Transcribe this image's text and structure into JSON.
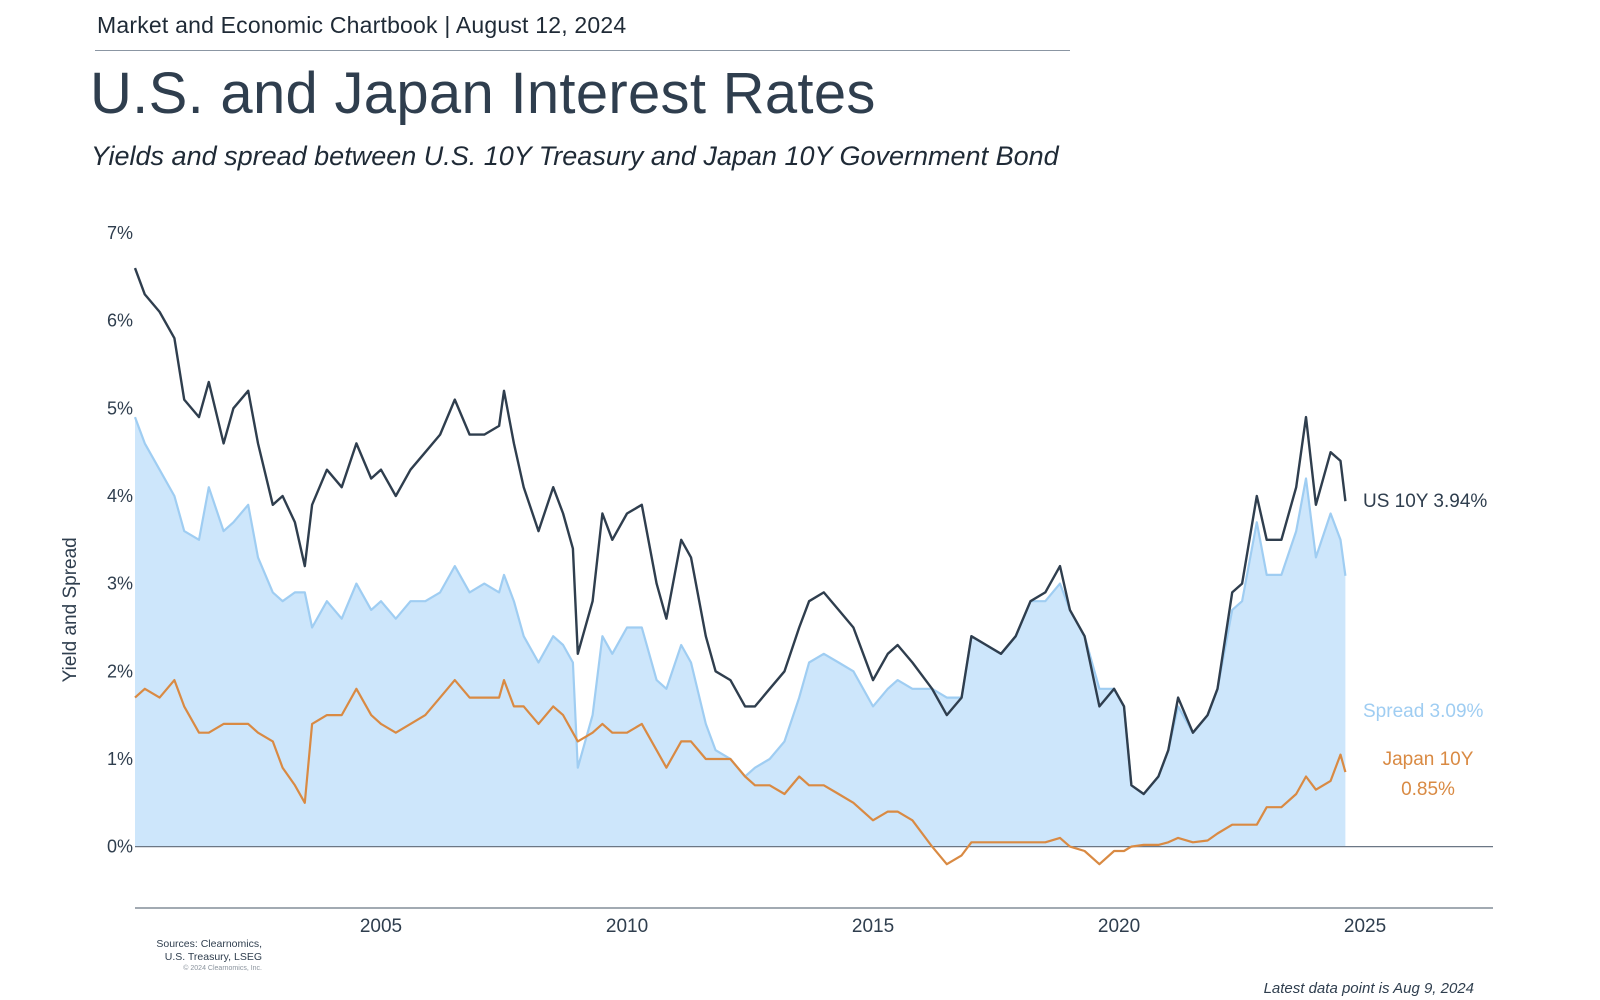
{
  "header": {
    "label": "Market and Economic Chartbook | August 12, 2024",
    "title": "U.S. and Japan Interest Rates",
    "subtitle": "Yields and spread between U.S. 10Y Treasury and Japan 10Y Government Bond"
  },
  "footer": {
    "sources_line1": "Sources: Clearnomics,",
    "sources_line2": "U.S. Treasury, LSEG",
    "copyright": "© 2024 Clearnomics, Inc.",
    "latest": "Latest data point is Aug 9, 2024"
  },
  "colors": {
    "us": "#2f3e4e",
    "spread_line": "#9fcdf2",
    "spread_fill": "#cde6fb",
    "japan": "#d98a43",
    "axis": "#6b7785"
  },
  "chart_data": {
    "type": "line",
    "ylabel": "Yield and Spread",
    "xlabel": "",
    "x_ticks": [
      2005,
      2010,
      2015,
      2020,
      2025
    ],
    "x_tick_labels": [
      "2005",
      "2010",
      "2015",
      "2020",
      "2025"
    ],
    "y_ticks": [
      0,
      1,
      2,
      3,
      4,
      5,
      6,
      7
    ],
    "y_tick_labels": [
      "0%",
      "1%",
      "2%",
      "3%",
      "4%",
      "5%",
      "6%",
      "7%"
    ],
    "xlim": [
      2000.0,
      2027.6
    ],
    "ylim": [
      -0.7,
      7.0
    ],
    "series": [
      {
        "name": "US 10Y",
        "end_label": "US 10Y 3.94%",
        "values": [
          [
            2000.0,
            6.6
          ],
          [
            2000.2,
            6.3
          ],
          [
            2000.5,
            6.1
          ],
          [
            2000.8,
            5.8
          ],
          [
            2001.0,
            5.1
          ],
          [
            2001.3,
            4.9
          ],
          [
            2001.5,
            5.3
          ],
          [
            2001.8,
            4.6
          ],
          [
            2002.0,
            5.0
          ],
          [
            2002.3,
            5.2
          ],
          [
            2002.5,
            4.6
          ],
          [
            2002.8,
            3.9
          ],
          [
            2003.0,
            4.0
          ],
          [
            2003.25,
            3.7
          ],
          [
            2003.45,
            3.2
          ],
          [
            2003.6,
            3.9
          ],
          [
            2003.9,
            4.3
          ],
          [
            2004.2,
            4.1
          ],
          [
            2004.5,
            4.6
          ],
          [
            2004.8,
            4.2
          ],
          [
            2005.0,
            4.3
          ],
          [
            2005.3,
            4.0
          ],
          [
            2005.6,
            4.3
          ],
          [
            2005.9,
            4.5
          ],
          [
            2006.2,
            4.7
          ],
          [
            2006.5,
            5.1
          ],
          [
            2006.8,
            4.7
          ],
          [
            2007.1,
            4.7
          ],
          [
            2007.4,
            4.8
          ],
          [
            2007.5,
            5.2
          ],
          [
            2007.7,
            4.6
          ],
          [
            2007.9,
            4.1
          ],
          [
            2008.2,
            3.6
          ],
          [
            2008.5,
            4.1
          ],
          [
            2008.7,
            3.8
          ],
          [
            2008.9,
            3.4
          ],
          [
            2009.0,
            2.2
          ],
          [
            2009.3,
            2.8
          ],
          [
            2009.5,
            3.8
          ],
          [
            2009.7,
            3.5
          ],
          [
            2010.0,
            3.8
          ],
          [
            2010.3,
            3.9
          ],
          [
            2010.6,
            3.0
          ],
          [
            2010.8,
            2.6
          ],
          [
            2011.1,
            3.5
          ],
          [
            2011.3,
            3.3
          ],
          [
            2011.6,
            2.4
          ],
          [
            2011.8,
            2.0
          ],
          [
            2012.1,
            1.9
          ],
          [
            2012.4,
            1.6
          ],
          [
            2012.6,
            1.6
          ],
          [
            2012.9,
            1.8
          ],
          [
            2013.2,
            2.0
          ],
          [
            2013.5,
            2.5
          ],
          [
            2013.7,
            2.8
          ],
          [
            2014.0,
            2.9
          ],
          [
            2014.3,
            2.7
          ],
          [
            2014.6,
            2.5
          ],
          [
            2015.0,
            1.9
          ],
          [
            2015.3,
            2.2
          ],
          [
            2015.5,
            2.3
          ],
          [
            2015.8,
            2.1
          ],
          [
            2016.2,
            1.8
          ],
          [
            2016.5,
            1.5
          ],
          [
            2016.8,
            1.7
          ],
          [
            2017.0,
            2.4
          ],
          [
            2017.3,
            2.3
          ],
          [
            2017.6,
            2.2
          ],
          [
            2017.9,
            2.4
          ],
          [
            2018.2,
            2.8
          ],
          [
            2018.5,
            2.9
          ],
          [
            2018.8,
            3.2
          ],
          [
            2019.0,
            2.7
          ],
          [
            2019.3,
            2.4
          ],
          [
            2019.6,
            1.6
          ],
          [
            2019.9,
            1.8
          ],
          [
            2020.1,
            1.6
          ],
          [
            2020.25,
            0.7
          ],
          [
            2020.5,
            0.6
          ],
          [
            2020.8,
            0.8
          ],
          [
            2021.0,
            1.1
          ],
          [
            2021.2,
            1.7
          ],
          [
            2021.5,
            1.3
          ],
          [
            2021.8,
            1.5
          ],
          [
            2022.0,
            1.8
          ],
          [
            2022.3,
            2.9
          ],
          [
            2022.5,
            3.0
          ],
          [
            2022.8,
            4.0
          ],
          [
            2023.0,
            3.5
          ],
          [
            2023.3,
            3.5
          ],
          [
            2023.6,
            4.1
          ],
          [
            2023.8,
            4.9
          ],
          [
            2024.0,
            3.9
          ],
          [
            2024.3,
            4.5
          ],
          [
            2024.5,
            4.4
          ],
          [
            2024.6,
            3.94
          ]
        ]
      },
      {
        "name": "Spread",
        "end_label": "Spread 3.09%",
        "values": [
          [
            2000.0,
            4.9
          ],
          [
            2000.2,
            4.6
          ],
          [
            2000.5,
            4.3
          ],
          [
            2000.8,
            4.0
          ],
          [
            2001.0,
            3.6
          ],
          [
            2001.3,
            3.5
          ],
          [
            2001.5,
            4.1
          ],
          [
            2001.8,
            3.6
          ],
          [
            2002.0,
            3.7
          ],
          [
            2002.3,
            3.9
          ],
          [
            2002.5,
            3.3
          ],
          [
            2002.8,
            2.9
          ],
          [
            2003.0,
            2.8
          ],
          [
            2003.25,
            2.9
          ],
          [
            2003.45,
            2.9
          ],
          [
            2003.6,
            2.5
          ],
          [
            2003.9,
            2.8
          ],
          [
            2004.2,
            2.6
          ],
          [
            2004.5,
            3.0
          ],
          [
            2004.8,
            2.7
          ],
          [
            2005.0,
            2.8
          ],
          [
            2005.3,
            2.6
          ],
          [
            2005.6,
            2.8
          ],
          [
            2005.9,
            2.8
          ],
          [
            2006.2,
            2.9
          ],
          [
            2006.5,
            3.2
          ],
          [
            2006.8,
            2.9
          ],
          [
            2007.1,
            3.0
          ],
          [
            2007.4,
            2.9
          ],
          [
            2007.5,
            3.1
          ],
          [
            2007.7,
            2.8
          ],
          [
            2007.9,
            2.4
          ],
          [
            2008.2,
            2.1
          ],
          [
            2008.5,
            2.4
          ],
          [
            2008.7,
            2.3
          ],
          [
            2008.9,
            2.1
          ],
          [
            2009.0,
            0.9
          ],
          [
            2009.3,
            1.5
          ],
          [
            2009.5,
            2.4
          ],
          [
            2009.7,
            2.2
          ],
          [
            2010.0,
            2.5
          ],
          [
            2010.3,
            2.5
          ],
          [
            2010.6,
            1.9
          ],
          [
            2010.8,
            1.8
          ],
          [
            2011.1,
            2.3
          ],
          [
            2011.3,
            2.1
          ],
          [
            2011.6,
            1.4
          ],
          [
            2011.8,
            1.1
          ],
          [
            2012.1,
            1.0
          ],
          [
            2012.4,
            0.8
          ],
          [
            2012.6,
            0.9
          ],
          [
            2012.9,
            1.0
          ],
          [
            2013.2,
            1.2
          ],
          [
            2013.5,
            1.7
          ],
          [
            2013.7,
            2.1
          ],
          [
            2014.0,
            2.2
          ],
          [
            2014.3,
            2.1
          ],
          [
            2014.6,
            2.0
          ],
          [
            2015.0,
            1.6
          ],
          [
            2015.3,
            1.8
          ],
          [
            2015.5,
            1.9
          ],
          [
            2015.8,
            1.8
          ],
          [
            2016.2,
            1.8
          ],
          [
            2016.5,
            1.7
          ],
          [
            2016.8,
            1.7
          ],
          [
            2017.0,
            2.4
          ],
          [
            2017.3,
            2.3
          ],
          [
            2017.6,
            2.2
          ],
          [
            2017.9,
            2.4
          ],
          [
            2018.2,
            2.8
          ],
          [
            2018.5,
            2.8
          ],
          [
            2018.8,
            3.0
          ],
          [
            2019.0,
            2.7
          ],
          [
            2019.3,
            2.4
          ],
          [
            2019.6,
            1.8
          ],
          [
            2019.9,
            1.8
          ],
          [
            2020.1,
            1.6
          ],
          [
            2020.25,
            0.7
          ],
          [
            2020.5,
            0.6
          ],
          [
            2020.8,
            0.8
          ],
          [
            2021.0,
            1.1
          ],
          [
            2021.2,
            1.6
          ],
          [
            2021.5,
            1.3
          ],
          [
            2021.8,
            1.5
          ],
          [
            2022.0,
            1.8
          ],
          [
            2022.3,
            2.7
          ],
          [
            2022.5,
            2.8
          ],
          [
            2022.8,
            3.7
          ],
          [
            2023.0,
            3.1
          ],
          [
            2023.3,
            3.1
          ],
          [
            2023.6,
            3.6
          ],
          [
            2023.8,
            4.2
          ],
          [
            2024.0,
            3.3
          ],
          [
            2024.3,
            3.8
          ],
          [
            2024.5,
            3.5
          ],
          [
            2024.6,
            3.09
          ]
        ]
      },
      {
        "name": "Japan 10Y",
        "end_label_line1": "Japan 10Y",
        "end_label_line2": "0.85%",
        "values": [
          [
            2000.0,
            1.7
          ],
          [
            2000.2,
            1.8
          ],
          [
            2000.5,
            1.7
          ],
          [
            2000.8,
            1.9
          ],
          [
            2001.0,
            1.6
          ],
          [
            2001.3,
            1.3
          ],
          [
            2001.5,
            1.3
          ],
          [
            2001.8,
            1.4
          ],
          [
            2002.0,
            1.4
          ],
          [
            2002.3,
            1.4
          ],
          [
            2002.5,
            1.3
          ],
          [
            2002.8,
            1.2
          ],
          [
            2003.0,
            0.9
          ],
          [
            2003.25,
            0.7
          ],
          [
            2003.45,
            0.5
          ],
          [
            2003.6,
            1.4
          ],
          [
            2003.9,
            1.5
          ],
          [
            2004.2,
            1.5
          ],
          [
            2004.5,
            1.8
          ],
          [
            2004.8,
            1.5
          ],
          [
            2005.0,
            1.4
          ],
          [
            2005.3,
            1.3
          ],
          [
            2005.6,
            1.4
          ],
          [
            2005.9,
            1.5
          ],
          [
            2006.2,
            1.7
          ],
          [
            2006.5,
            1.9
          ],
          [
            2006.8,
            1.7
          ],
          [
            2007.1,
            1.7
          ],
          [
            2007.4,
            1.7
          ],
          [
            2007.5,
            1.9
          ],
          [
            2007.7,
            1.6
          ],
          [
            2007.9,
            1.6
          ],
          [
            2008.2,
            1.4
          ],
          [
            2008.5,
            1.6
          ],
          [
            2008.7,
            1.5
          ],
          [
            2008.9,
            1.3
          ],
          [
            2009.0,
            1.2
          ],
          [
            2009.3,
            1.3
          ],
          [
            2009.5,
            1.4
          ],
          [
            2009.7,
            1.3
          ],
          [
            2010.0,
            1.3
          ],
          [
            2010.3,
            1.4
          ],
          [
            2010.6,
            1.1
          ],
          [
            2010.8,
            0.9
          ],
          [
            2011.1,
            1.2
          ],
          [
            2011.3,
            1.2
          ],
          [
            2011.6,
            1.0
          ],
          [
            2011.8,
            1.0
          ],
          [
            2012.1,
            1.0
          ],
          [
            2012.4,
            0.8
          ],
          [
            2012.6,
            0.7
          ],
          [
            2012.9,
            0.7
          ],
          [
            2013.2,
            0.6
          ],
          [
            2013.5,
            0.8
          ],
          [
            2013.7,
            0.7
          ],
          [
            2014.0,
            0.7
          ],
          [
            2014.3,
            0.6
          ],
          [
            2014.6,
            0.5
          ],
          [
            2015.0,
            0.3
          ],
          [
            2015.3,
            0.4
          ],
          [
            2015.5,
            0.4
          ],
          [
            2015.8,
            0.3
          ],
          [
            2016.2,
            0.0
          ],
          [
            2016.5,
            -0.2
          ],
          [
            2016.8,
            -0.1
          ],
          [
            2017.0,
            0.05
          ],
          [
            2017.3,
            0.05
          ],
          [
            2017.6,
            0.05
          ],
          [
            2017.9,
            0.05
          ],
          [
            2018.2,
            0.05
          ],
          [
            2018.5,
            0.05
          ],
          [
            2018.8,
            0.1
          ],
          [
            2019.0,
            0.0
          ],
          [
            2019.3,
            -0.05
          ],
          [
            2019.6,
            -0.2
          ],
          [
            2019.9,
            -0.05
          ],
          [
            2020.1,
            -0.05
          ],
          [
            2020.25,
            0.0
          ],
          [
            2020.5,
            0.02
          ],
          [
            2020.8,
            0.02
          ],
          [
            2021.0,
            0.05
          ],
          [
            2021.2,
            0.1
          ],
          [
            2021.5,
            0.05
          ],
          [
            2021.8,
            0.07
          ],
          [
            2022.0,
            0.15
          ],
          [
            2022.3,
            0.25
          ],
          [
            2022.5,
            0.25
          ],
          [
            2022.8,
            0.25
          ],
          [
            2023.0,
            0.45
          ],
          [
            2023.3,
            0.45
          ],
          [
            2023.6,
            0.6
          ],
          [
            2023.8,
            0.8
          ],
          [
            2024.0,
            0.65
          ],
          [
            2024.3,
            0.75
          ],
          [
            2024.5,
            1.05
          ],
          [
            2024.6,
            0.85
          ]
        ]
      }
    ],
    "grid": false,
    "legend": "none; series labels at right end of lines"
  }
}
